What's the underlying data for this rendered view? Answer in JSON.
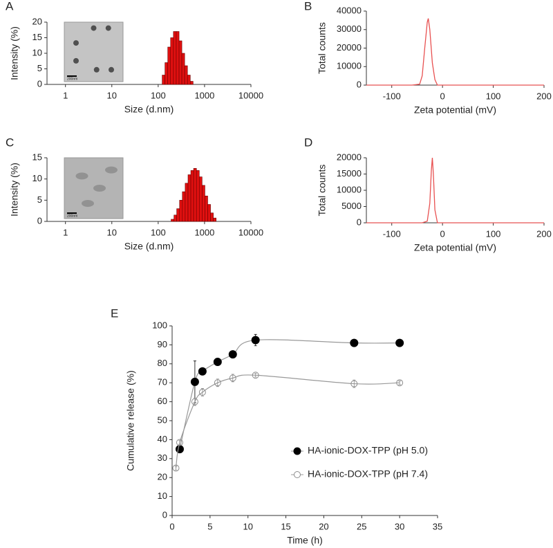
{
  "chart_data": [
    {
      "type": "histogram",
      "panel": "A",
      "x_label": "Size (d.nm)",
      "y_label": "Intensity (%)",
      "inset_label": "200nm",
      "xlog": true,
      "xlim": [
        0.4,
        10000
      ],
      "xticks": [
        1,
        10,
        100,
        1000,
        10000
      ],
      "ylim": [
        0,
        20
      ],
      "yticks": [
        0,
        5,
        10,
        15,
        20
      ],
      "color": "#e01010",
      "bins": [
        122,
        140,
        161,
        185,
        213,
        245,
        282,
        324,
        372,
        428,
        492,
        566
      ],
      "values": [
        3,
        7,
        12,
        15,
        17,
        17,
        14,
        10,
        6,
        3,
        1
      ]
    },
    {
      "type": "line",
      "panel": "B",
      "x_label": "Zeta potential (mV)",
      "y_label": "Total counts",
      "xlim": [
        -150,
        200
      ],
      "xticks": [
        -100,
        0,
        100,
        200
      ],
      "ylim": [
        0,
        40000
      ],
      "yticks": [
        0,
        10000,
        20000,
        30000,
        40000
      ],
      "color": "#e85050",
      "x": [
        -150,
        -60,
        -45,
        -40,
        -35,
        -30,
        -28,
        -25,
        -20,
        -15,
        -10,
        0,
        200
      ],
      "values": [
        0,
        0,
        500,
        5000,
        20000,
        34000,
        36000,
        30000,
        12000,
        3000,
        0,
        0,
        0
      ]
    },
    {
      "type": "histogram",
      "panel": "C",
      "x_label": "Size (d.nm)",
      "y_label": "Intensity (%)",
      "inset_label": "200nm",
      "xlog": true,
      "xlim": [
        0.4,
        10000
      ],
      "xticks": [
        1,
        10,
        100,
        1000,
        10000
      ],
      "ylim": [
        0,
        15
      ],
      "yticks": [
        0,
        5,
        10,
        15
      ],
      "color": "#e01010",
      "bins": [
        190,
        219,
        251,
        289,
        332,
        382,
        440,
        506,
        581,
        669,
        769,
        884,
        1017,
        1169,
        1345,
        1546,
        1778
      ],
      "values": [
        0.5,
        1.5,
        3,
        5,
        7,
        9,
        11,
        12,
        12.5,
        12,
        10.5,
        8.5,
        6,
        4,
        2,
        0.8
      ]
    },
    {
      "type": "line",
      "panel": "D",
      "x_label": "Zeta potential (mV)",
      "y_label": "Total counts",
      "xlim": [
        -150,
        200
      ],
      "xticks": [
        -100,
        0,
        100,
        200
      ],
      "ylim": [
        0,
        20000
      ],
      "yticks": [
        0,
        5000,
        10000,
        15000,
        20000
      ],
      "color": "#e85050",
      "x": [
        -150,
        -40,
        -30,
        -25,
        -22,
        -20,
        -18,
        -15,
        -10,
        200
      ],
      "values": [
        0,
        0,
        500,
        6000,
        16000,
        20000,
        15000,
        4000,
        0,
        0
      ]
    },
    {
      "type": "scatter",
      "panel": "E",
      "x_label": "Time (h)",
      "y_label": "Cumulative release (%)",
      "xlim": [
        0,
        35
      ],
      "xticks": [
        0,
        5,
        10,
        15,
        20,
        25,
        30,
        35
      ],
      "ylim": [
        0,
        100
      ],
      "yticks": [
        0,
        10,
        20,
        30,
        40,
        50,
        60,
        70,
        80,
        90,
        100
      ],
      "series": [
        {
          "name": "HA-ionic-DOX-TPP (pH 5.0)",
          "color": "#000000",
          "filled": true,
          "x": [
            1,
            3,
            4,
            6,
            8,
            11,
            24,
            30
          ],
          "values": [
            35,
            70.5,
            76,
            81,
            85,
            92.5,
            91,
            91
          ],
          "errors": [
            1,
            11,
            1,
            1,
            1,
            3,
            1.5,
            1
          ]
        },
        {
          "name": "HA-ionic-DOX-TPP (pH 7.4)",
          "color": "#8c8c8c",
          "filled": false,
          "x": [
            0.5,
            1,
            3,
            4,
            6,
            8,
            11,
            24,
            30
          ],
          "values": [
            25,
            38.5,
            60,
            65,
            70,
            72.5,
            74,
            69.5,
            70
          ],
          "errors": [
            1,
            1,
            2,
            2,
            2,
            2,
            1,
            2,
            1
          ]
        }
      ]
    }
  ]
}
